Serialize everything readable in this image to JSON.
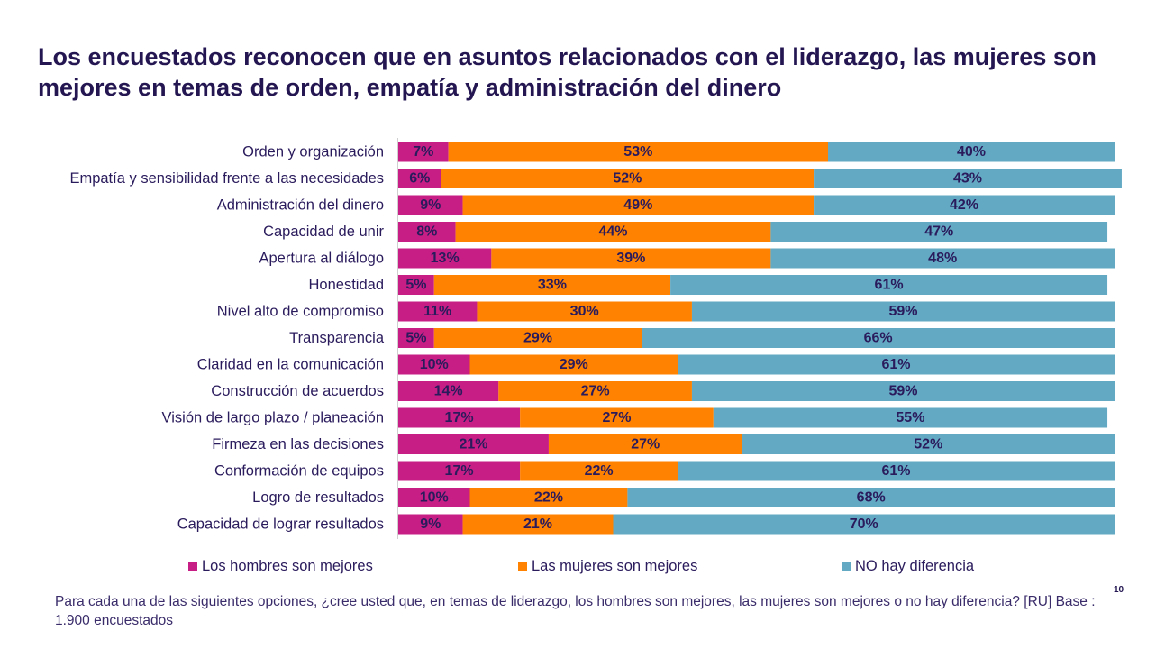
{
  "slide": {
    "title": "Los encuestados reconocen que en asuntos relacionados con el liderazgo, las mujeres son mejores en temas de orden, empatía y administración del dinero",
    "footnote": "Para cada una de las siguientes opciones, ¿cree usted que, en temas de liderazgo, los hombres son mejores, las mujeres son mejores o no hay diferencia? [RU] Base : 1.900 encuestados",
    "page_number": "10"
  },
  "chart_data": {
    "type": "bar",
    "orientation": "horizontal",
    "stacked": true,
    "value_unit": "%",
    "xlim": [
      0,
      100
    ],
    "grid": false,
    "legend_position": "bottom",
    "categories": [
      "Orden y organización",
      "Empatía y sensibilidad frente a las necesidades",
      "Administración del dinero",
      "Capacidad de unir",
      "Apertura al diálogo",
      "Honestidad",
      "Nivel alto de compromiso",
      "Transparencia",
      "Claridad en la comunicación",
      "Construcción de acuerdos",
      "Visión de largo plazo / planeación",
      "Firmeza en las decisiones",
      "Conformación de equipos",
      "Logro de resultados",
      "Capacidad de lograr resultados"
    ],
    "series": [
      {
        "name": "Los hombres son mejores",
        "color": "#c71e85",
        "values": [
          7,
          6,
          9,
          8,
          13,
          5,
          11,
          5,
          10,
          14,
          17,
          21,
          17,
          10,
          9
        ]
      },
      {
        "name": "Las mujeres son mejores",
        "color": "#ff8200",
        "values": [
          53,
          52,
          49,
          44,
          39,
          33,
          30,
          29,
          29,
          27,
          27,
          27,
          22,
          22,
          21
        ]
      },
      {
        "name": "NO hay diferencia",
        "color": "#63a9c3",
        "values": [
          40,
          43,
          42,
          47,
          48,
          61,
          59,
          66,
          61,
          59,
          55,
          52,
          61,
          68,
          70
        ]
      }
    ]
  }
}
